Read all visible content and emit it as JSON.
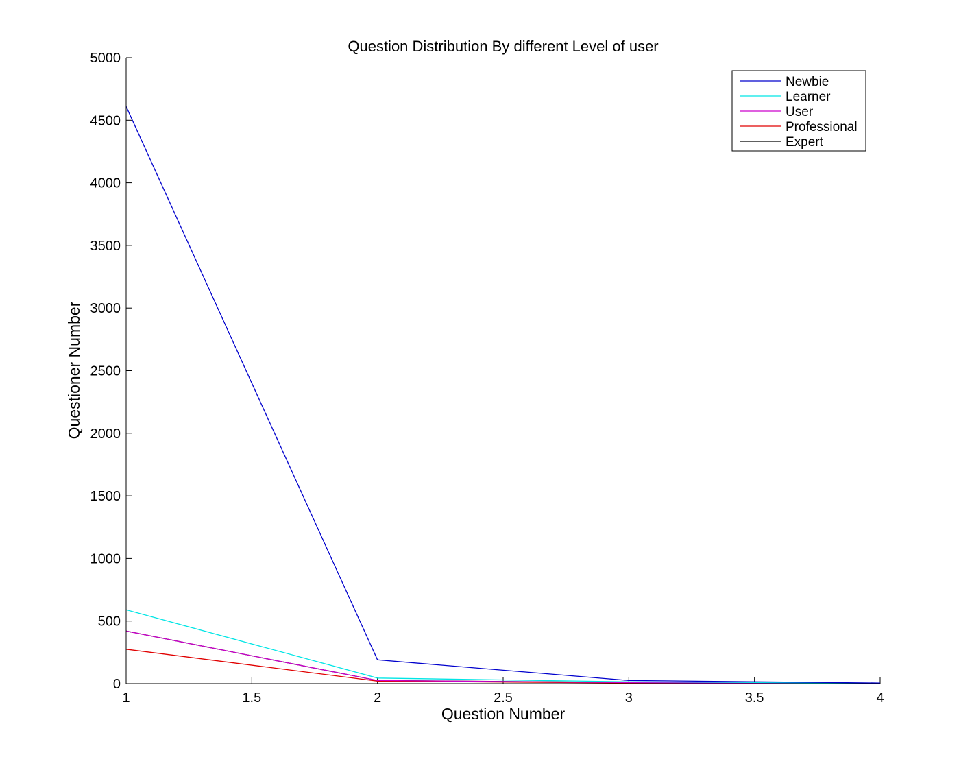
{
  "chart_data": {
    "type": "line",
    "title": "Question Distribution By different Level of user",
    "xlabel": "Question Number",
    "ylabel": "Questioner Number",
    "xlim": [
      1,
      4
    ],
    "ylim": [
      0,
      5000
    ],
    "xticks": [
      1,
      1.5,
      2,
      2.5,
      3,
      3.5,
      4
    ],
    "xtick_labels": [
      "1",
      "1.5",
      "2",
      "2.5",
      "3",
      "3.5",
      "4"
    ],
    "yticks": [
      0,
      500,
      1000,
      1500,
      2000,
      2500,
      3000,
      3500,
      4000,
      4500,
      5000
    ],
    "ytick_labels": [
      "0",
      "500",
      "1000",
      "1500",
      "2000",
      "2500",
      "3000",
      "3500",
      "4000",
      "4500",
      "5000"
    ],
    "grid": false,
    "legend_position": "top-right",
    "x": [
      1,
      2,
      3,
      4
    ],
    "series": [
      {
        "name": "Newbie",
        "color": "#0000cc",
        "values": [
          4610,
          190,
          25,
          5
        ]
      },
      {
        "name": "Learner",
        "color": "#00e5e5",
        "values": [
          590,
          45,
          15,
          3
        ]
      },
      {
        "name": "User",
        "color": "#cc00cc",
        "values": [
          420,
          25,
          8,
          2
        ]
      },
      {
        "name": "Professional",
        "color": "#e00000",
        "values": [
          275,
          20,
          5,
          1
        ]
      },
      {
        "name": "Expert",
        "color": "#000000",
        "values": [
          420,
          25,
          10,
          2
        ]
      }
    ]
  }
}
